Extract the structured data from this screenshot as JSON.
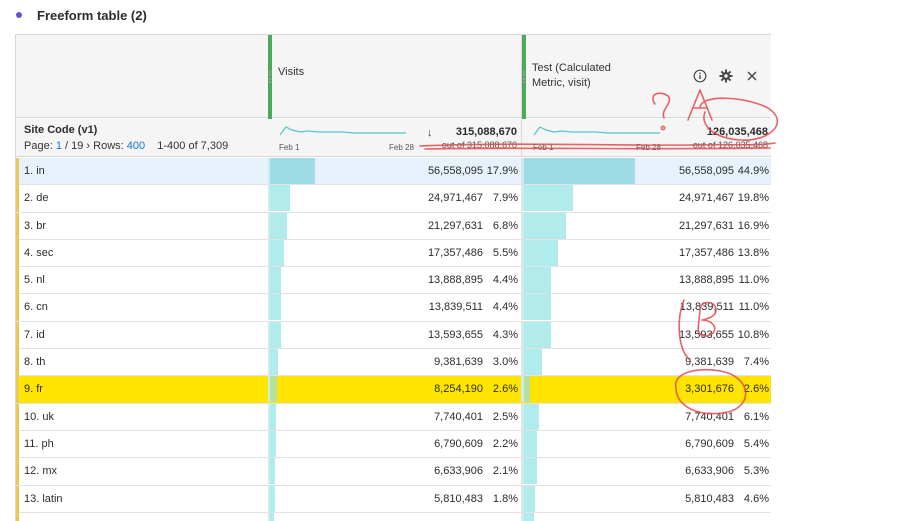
{
  "panel": {
    "title": "Freeform table (2)"
  },
  "columns": [
    {
      "name": "Visits",
      "total": "315,088,670",
      "out_of": "out of 315,088,670",
      "sort_icon": "arrow-down-icon"
    },
    {
      "name": "Test (Calculated Metric, visit)",
      "total": "126,035,468",
      "out_of": "out of 126,035,468"
    }
  ],
  "sparkline": {
    "start_label": "Feb 1",
    "end_label": "Feb 28"
  },
  "header_icons": [
    "info-icon",
    "gear-icon",
    "close-icon"
  ],
  "dimension": {
    "title": "Site Code (v1)",
    "page_label": "Page:",
    "page_current": "1",
    "page_sep": "/ 19",
    "rows_label": "Rows:",
    "rows_value": "400",
    "range": "1-400 of 7,309"
  },
  "rows": [
    {
      "label": "1.  in",
      "v1": "56,558,095",
      "p1": "17.9%",
      "f1": 0.179,
      "v2": "56,558,095",
      "p2": "44.9%",
      "f2": 0.449,
      "state": "selected"
    },
    {
      "label": "2.  de",
      "v1": "24,971,467",
      "p1": "7.9%",
      "f1": 0.079,
      "v2": "24,971,467",
      "p2": "19.8%",
      "f2": 0.198,
      "state": ""
    },
    {
      "label": "3.  br",
      "v1": "21,297,631",
      "p1": "6.8%",
      "f1": 0.068,
      "v2": "21,297,631",
      "p2": "16.9%",
      "f2": 0.169,
      "state": ""
    },
    {
      "label": "4.  sec",
      "v1": "17,357,486",
      "p1": "5.5%",
      "f1": 0.055,
      "v2": "17,357,486",
      "p2": "13.8%",
      "f2": 0.138,
      "state": ""
    },
    {
      "label": "5.  nl",
      "v1": "13,888,895",
      "p1": "4.4%",
      "f1": 0.044,
      "v2": "13,888,895",
      "p2": "11.0%",
      "f2": 0.11,
      "state": ""
    },
    {
      "label": "6.  cn",
      "v1": "13,839,511",
      "p1": "4.4%",
      "f1": 0.044,
      "v2": "13,839,511",
      "p2": "11.0%",
      "f2": 0.11,
      "state": ""
    },
    {
      "label": "7.  id",
      "v1": "13,593,655",
      "p1": "4.3%",
      "f1": 0.043,
      "v2": "13,593,655",
      "p2": "10.8%",
      "f2": 0.108,
      "state": ""
    },
    {
      "label": "8.  th",
      "v1": "9,381,639",
      "p1": "3.0%",
      "f1": 0.03,
      "v2": "9,381,639",
      "p2": "7.4%",
      "f2": 0.074,
      "state": ""
    },
    {
      "label": "9.  fr",
      "v1": "8,254,190",
      "p1": "2.6%",
      "f1": 0.026,
      "v2": "3,301,676",
      "p2": "2.6%",
      "f2": 0.026,
      "state": "highlight"
    },
    {
      "label": "10.  uk",
      "v1": "7,740,401",
      "p1": "2.5%",
      "f1": 0.025,
      "v2": "7,740,401",
      "p2": "6.1%",
      "f2": 0.061,
      "state": ""
    },
    {
      "label": "11.  ph",
      "v1": "6,790,609",
      "p1": "2.2%",
      "f1": 0.022,
      "v2": "6,790,609",
      "p2": "5.4%",
      "f2": 0.054,
      "state": ""
    },
    {
      "label": "12.  mx",
      "v1": "6,633,906",
      "p1": "2.1%",
      "f1": 0.021,
      "v2": "6,633,906",
      "p2": "5.3%",
      "f2": 0.053,
      "state": ""
    },
    {
      "label": "13.  latin",
      "v1": "5,810,483",
      "p1": "1.8%",
      "f1": 0.018,
      "v2": "5,810,483",
      "p2": "4.6%",
      "f2": 0.046,
      "state": ""
    },
    {
      "label": "",
      "v1": "",
      "p1": "",
      "f1": 0.016,
      "v2": "",
      "p2": "",
      "f2": 0.04,
      "state": ""
    }
  ],
  "annotations": [
    "A",
    "B"
  ],
  "colors": {
    "accent_green": "#4caa5b",
    "bar": "#b2ebec",
    "highlight": "#ffe500",
    "scribble": "#e5484d",
    "link": "#1473e6"
  }
}
